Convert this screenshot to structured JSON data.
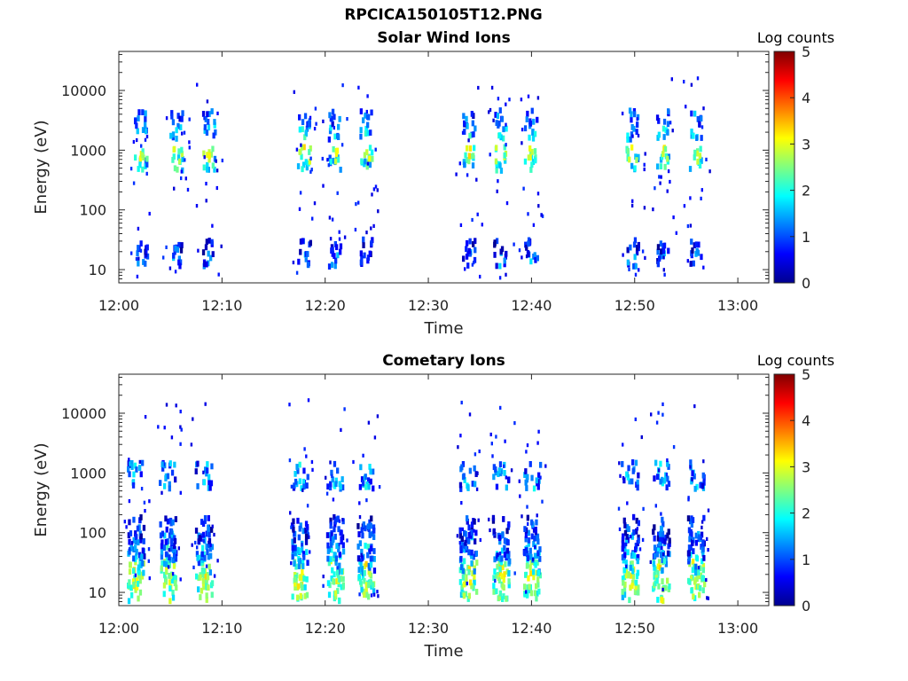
{
  "figure_title": "RPCICA150105T12.PNG",
  "chart_data": [
    {
      "type": "heatmap",
      "title": "Solar Wind Ions",
      "xlabel": "Time",
      "ylabel": "Energy (eV)",
      "x_ticks": [
        "12:00",
        "12:10",
        "12:20",
        "12:30",
        "12:40",
        "12:50",
        "13:00"
      ],
      "xlim_minutes": [
        0,
        63
      ],
      "y_scale": "log",
      "ylim": [
        6,
        45000
      ],
      "y_ticks": [
        10,
        100,
        1000,
        10000
      ],
      "y_tick_labels": [
        "10",
        "100",
        "1000",
        "10000"
      ],
      "colorbar": {
        "label": "Log counts",
        "min": 0,
        "max": 5,
        "ticks": [
          "0",
          "1",
          "2",
          "3",
          "4",
          "5"
        ],
        "colormap": "jet"
      },
      "burst_groups_minutes": [
        {
          "start": 1.0,
          "end": 9.5,
          "peaks": [
            2.2,
            5.6,
            8.8
          ]
        },
        {
          "start": 16.5,
          "end": 25.5,
          "peaks": [
            18.0,
            21.0,
            24.0
          ]
        },
        {
          "start": 33.0,
          "end": 42.0,
          "peaks": [
            34.0,
            37.0,
            40.0
          ]
        },
        {
          "start": 48.5,
          "end": 57.5,
          "peaks": [
            49.8,
            52.8,
            56.0
          ]
        }
      ],
      "intensity_bands": [
        {
          "energy_eV": 15,
          "log_counts": 1.3
        },
        {
          "energy_eV": 24,
          "log_counts": 0.9
        },
        {
          "energy_eV": 600,
          "log_counts": 2.0
        },
        {
          "energy_eV": 850,
          "log_counts": 2.8
        },
        {
          "energy_eV": 2000,
          "log_counts": 1.7
        },
        {
          "energy_eV": 3500,
          "log_counts": 1.2
        }
      ]
    },
    {
      "type": "heatmap",
      "title": "Cometary Ions",
      "xlabel": "Time",
      "ylabel": "Energy (eV)",
      "x_ticks": [
        "12:00",
        "12:10",
        "12:20",
        "12:30",
        "12:40",
        "12:50",
        "13:00"
      ],
      "xlim_minutes": [
        0,
        63
      ],
      "y_scale": "log",
      "ylim": [
        6,
        45000
      ],
      "y_ticks": [
        10,
        100,
        1000,
        10000
      ],
      "y_tick_labels": [
        "10",
        "100",
        "1000",
        "10000"
      ],
      "colorbar": {
        "label": "Log counts",
        "min": 0,
        "max": 5,
        "ticks": [
          "0",
          "1",
          "2",
          "3",
          "4",
          "5"
        ],
        "colormap": "jet"
      },
      "burst_groups_minutes": [
        {
          "start": 0.0,
          "end": 9.8,
          "peaks": [
            1.7,
            4.8,
            8.3
          ]
        },
        {
          "start": 16.5,
          "end": 25.5,
          "peaks": [
            17.6,
            21.0,
            24.0
          ]
        },
        {
          "start": 32.5,
          "end": 42.0,
          "peaks": [
            33.9,
            37.1,
            40.1
          ]
        },
        {
          "start": 48.5,
          "end": 57.5,
          "peaks": [
            49.6,
            52.6,
            56.0
          ]
        }
      ],
      "intensity_bands": [
        {
          "energy_eV": 12,
          "log_counts": 2.6
        },
        {
          "energy_eV": 20,
          "log_counts": 2.9
        },
        {
          "energy_eV": 35,
          "log_counts": 1.8
        },
        {
          "energy_eV": 60,
          "log_counts": 1.4
        },
        {
          "energy_eV": 110,
          "log_counts": 1.0
        },
        {
          "energy_eV": 900,
          "log_counts": 1.5
        }
      ]
    }
  ]
}
